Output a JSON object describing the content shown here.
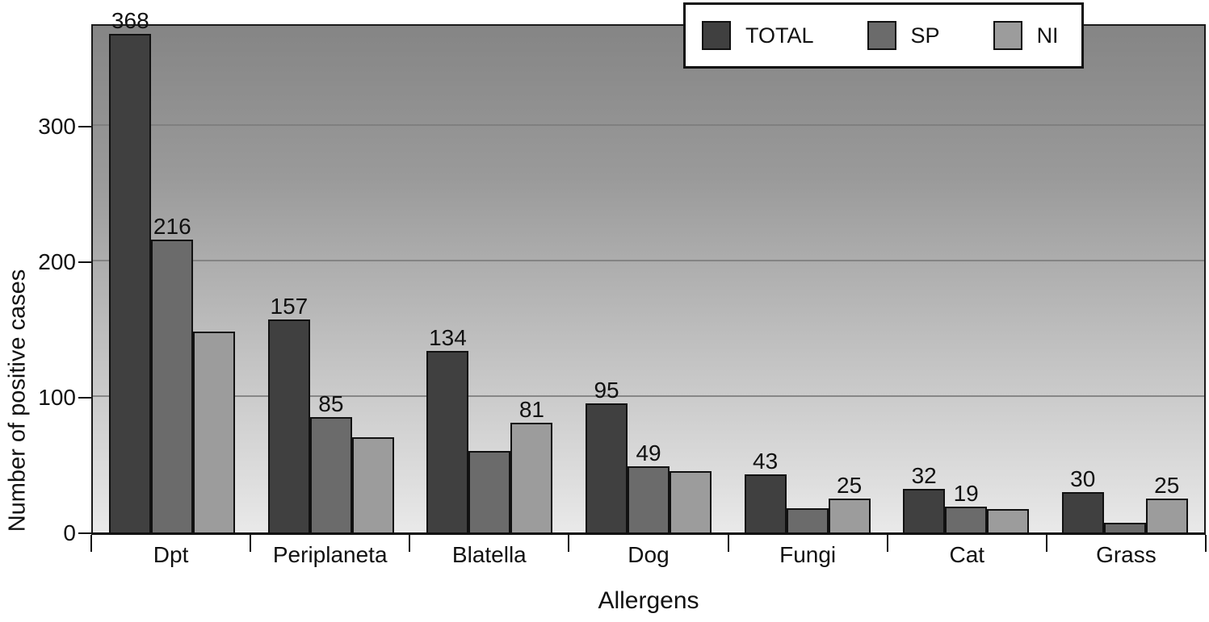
{
  "chart_data": {
    "type": "bar",
    "title": "",
    "xlabel": "Allergens",
    "ylabel": "Number of positive cases",
    "ylim": [
      0,
      380
    ],
    "yticks": [
      0,
      100,
      200,
      300
    ],
    "grid": "horizontal",
    "legend_position": "top-right",
    "legend": [
      "TOTAL",
      "SP",
      "NI"
    ],
    "categories": [
      "Dpt",
      "Periplaneta",
      "Blatella",
      "Dog",
      "Fungi",
      "Cat",
      "Grass"
    ],
    "series": [
      {
        "name": "TOTAL",
        "color": "#404040",
        "values": [
          368,
          157,
          134,
          95,
          43,
          32,
          30
        ],
        "show_label": [
          true,
          true,
          true,
          true,
          true,
          true,
          true
        ]
      },
      {
        "name": "SP",
        "color": "#6b6b6b",
        "values": [
          216,
          85,
          60,
          49,
          18,
          19,
          7
        ],
        "show_label": [
          true,
          true,
          false,
          true,
          false,
          true,
          false
        ]
      },
      {
        "name": "NI",
        "color": "#9c9c9c",
        "values": [
          148,
          70,
          81,
          45,
          25,
          17,
          25
        ],
        "show_label": [
          false,
          false,
          true,
          false,
          true,
          false,
          true
        ]
      }
    ],
    "colors": {
      "plot_bg_top": "#858585",
      "plot_bg_bottom": "#e9e9e9",
      "bar_outline": "#111111",
      "gridline": "#7b7b7b",
      "text": "#111111",
      "legend_bg": "#ffffff"
    }
  }
}
